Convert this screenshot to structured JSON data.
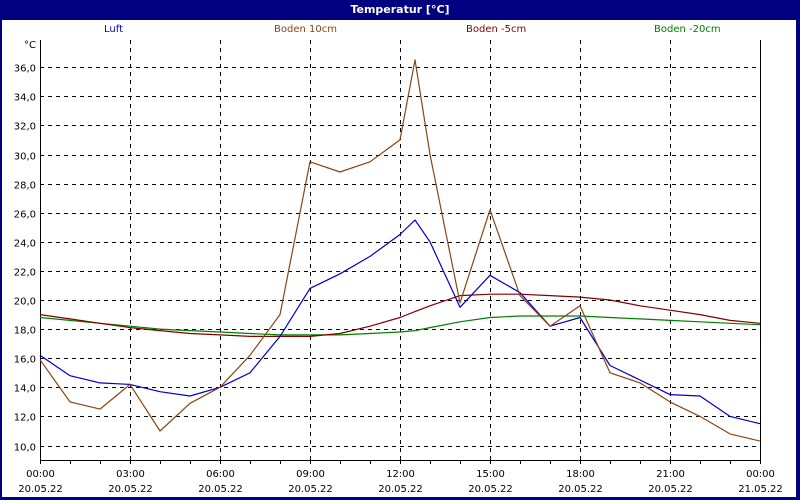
{
  "window": {
    "title": "Temperatur [°C]"
  },
  "legend": [
    {
      "label": "Luft",
      "color": "#0000cc"
    },
    {
      "label": "Boden 10cm",
      "color": "#8b4513"
    },
    {
      "label": "Boden -5cm",
      "color": "#800000"
    },
    {
      "label": "Boden -20cm",
      "color": "#008000"
    }
  ],
  "axis": {
    "y_unit": "°C",
    "y_ticks": [
      "36,0",
      "34,0",
      "32,0",
      "30,0",
      "28,0",
      "26,0",
      "24,0",
      "22,0",
      "20,0",
      "18,0",
      "16,0",
      "14,0",
      "12,0",
      "10,0"
    ],
    "x_ticks": [
      {
        "time": "00:00",
        "date": "20.05.22"
      },
      {
        "time": "03:00",
        "date": "20.05.22"
      },
      {
        "time": "06:00",
        "date": "20.05.22"
      },
      {
        "time": "09:00",
        "date": "20.05.22"
      },
      {
        "time": "12:00",
        "date": "20.05.22"
      },
      {
        "time": "15:00",
        "date": "20.05.22"
      },
      {
        "time": "18:00",
        "date": "20.05.22"
      },
      {
        "time": "21:00",
        "date": "20.05.22"
      },
      {
        "time": "00:00",
        "date": "21.05.22"
      }
    ]
  },
  "chart_data": {
    "type": "line",
    "title": "Temperatur [°C]",
    "xlabel": "",
    "ylabel": "°C",
    "ylim": [
      9,
      37
    ],
    "xlim": [
      "20.05.22 00:00",
      "21.05.22 00:00"
    ],
    "grid": true,
    "legend_position": "top",
    "x": [
      0,
      1,
      2,
      3,
      4,
      5,
      6,
      7,
      8,
      9,
      10,
      11,
      12,
      12.5,
      13,
      14,
      15,
      16,
      17,
      18,
      19,
      20,
      21,
      22,
      23,
      24
    ],
    "series": [
      {
        "name": "Luft",
        "values": [
          16.2,
          14.8,
          14.3,
          14.2,
          13.7,
          13.4,
          14.0,
          15.0,
          17.5,
          20.8,
          21.8,
          23.0,
          24.5,
          25.5,
          24.0,
          19.5,
          21.7,
          20.5,
          18.2,
          18.8,
          15.5,
          14.5,
          13.5,
          13.4,
          12.0,
          11.5
        ]
      },
      {
        "name": "Boden 10cm",
        "values": [
          15.9,
          13.0,
          12.5,
          14.2,
          11.0,
          12.9,
          14.0,
          16.2,
          19.0,
          29.5,
          28.8,
          29.5,
          31.0,
          36.5,
          30.0,
          19.8,
          26.2,
          20.3,
          18.2,
          19.6,
          15.0,
          14.3,
          13.0,
          12.0,
          10.8,
          10.3
        ]
      },
      {
        "name": "Boden -5cm",
        "values": [
          19.0,
          18.7,
          18.4,
          18.1,
          17.9,
          17.7,
          17.6,
          17.5,
          17.5,
          17.5,
          17.7,
          18.2,
          18.8,
          19.2,
          19.6,
          20.3,
          20.4,
          20.4,
          20.3,
          20.2,
          20.0,
          19.6,
          19.3,
          19.0,
          18.6,
          18.4
        ]
      },
      {
        "name": "Boden -20cm",
        "values": [
          18.8,
          18.6,
          18.4,
          18.2,
          18.0,
          17.9,
          17.8,
          17.7,
          17.6,
          17.6,
          17.6,
          17.7,
          17.8,
          17.9,
          18.1,
          18.5,
          18.8,
          18.9,
          18.9,
          18.9,
          18.8,
          18.7,
          18.6,
          18.5,
          18.4,
          18.3
        ]
      }
    ]
  }
}
